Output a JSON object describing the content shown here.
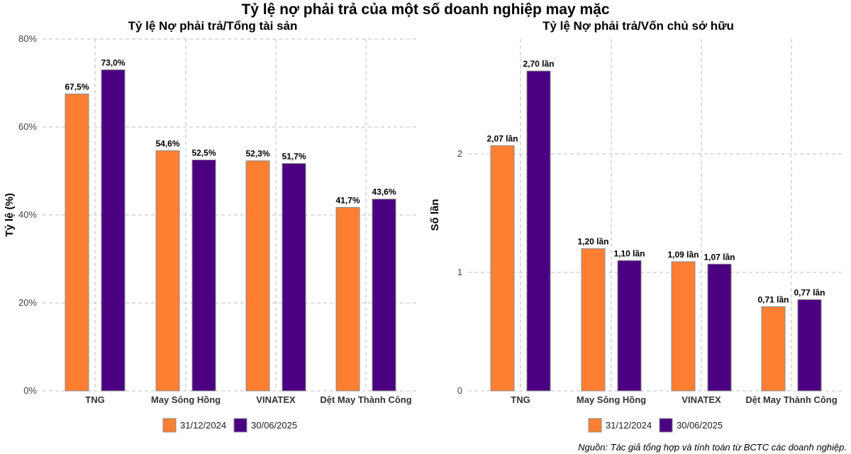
{
  "title": "Tỷ lệ nợ phải trả của một số doanh nghiệp may mặc",
  "source": "Nguồn: Tác giả tổng hợp và tính toán từ BCTC các doanh nghiệp.",
  "colors": {
    "series1": "#FF7F32",
    "series2": "#4B0082",
    "grid": "#bbbbbb",
    "bar_border": "#888888"
  },
  "chart_data": [
    {
      "type": "bar",
      "title": "Tỷ lệ Nợ phải trả/Tổng tài sản",
      "xlabel": "",
      "ylabel": "Tỷ lệ (%)",
      "ylim": [
        0,
        80
      ],
      "yticks": [
        0,
        20,
        40,
        60,
        80
      ],
      "ytick_labels": [
        "0%",
        "20%",
        "40%",
        "60%",
        "80%"
      ],
      "categories": [
        "TNG",
        "May Sông Hồng",
        "VINATEX",
        "Dệt May Thành Công"
      ],
      "series": [
        {
          "name": "31/12/2024",
          "values": [
            67.5,
            54.6,
            52.3,
            41.7
          ],
          "labels": [
            "67,5%",
            "54,6%",
            "52,3%",
            "41,7%"
          ]
        },
        {
          "name": "30/06/2025",
          "values": [
            73.0,
            52.5,
            51.7,
            43.6
          ],
          "labels": [
            "73,0%",
            "52,5%",
            "51,7%",
            "43,6%"
          ]
        }
      ],
      "legend_position": "bottom",
      "grid": true
    },
    {
      "type": "bar",
      "title": "Tỷ lệ Nợ phải trả/Vốn chủ sở hữu",
      "xlabel": "",
      "ylabel": "Số lần",
      "ylim": [
        0,
        2.97
      ],
      "yticks": [
        0,
        1,
        2
      ],
      "ytick_labels": [
        "0",
        "1",
        "2"
      ],
      "categories": [
        "TNG",
        "May Sông Hồng",
        "VINATEX",
        "Dệt May Thành Công"
      ],
      "series": [
        {
          "name": "31/12/2024",
          "values": [
            2.07,
            1.2,
            1.09,
            0.71
          ],
          "labels": [
            "2,07 lần",
            "1,20 lần",
            "1,09 lần",
            "0,71 lần"
          ]
        },
        {
          "name": "30/06/2025",
          "values": [
            2.7,
            1.1,
            1.07,
            0.77
          ],
          "labels": [
            "2,70 lần",
            "1,10 lần",
            "1,07 lần",
            "0,77 lần"
          ]
        }
      ],
      "legend_position": "bottom",
      "grid": true
    }
  ]
}
